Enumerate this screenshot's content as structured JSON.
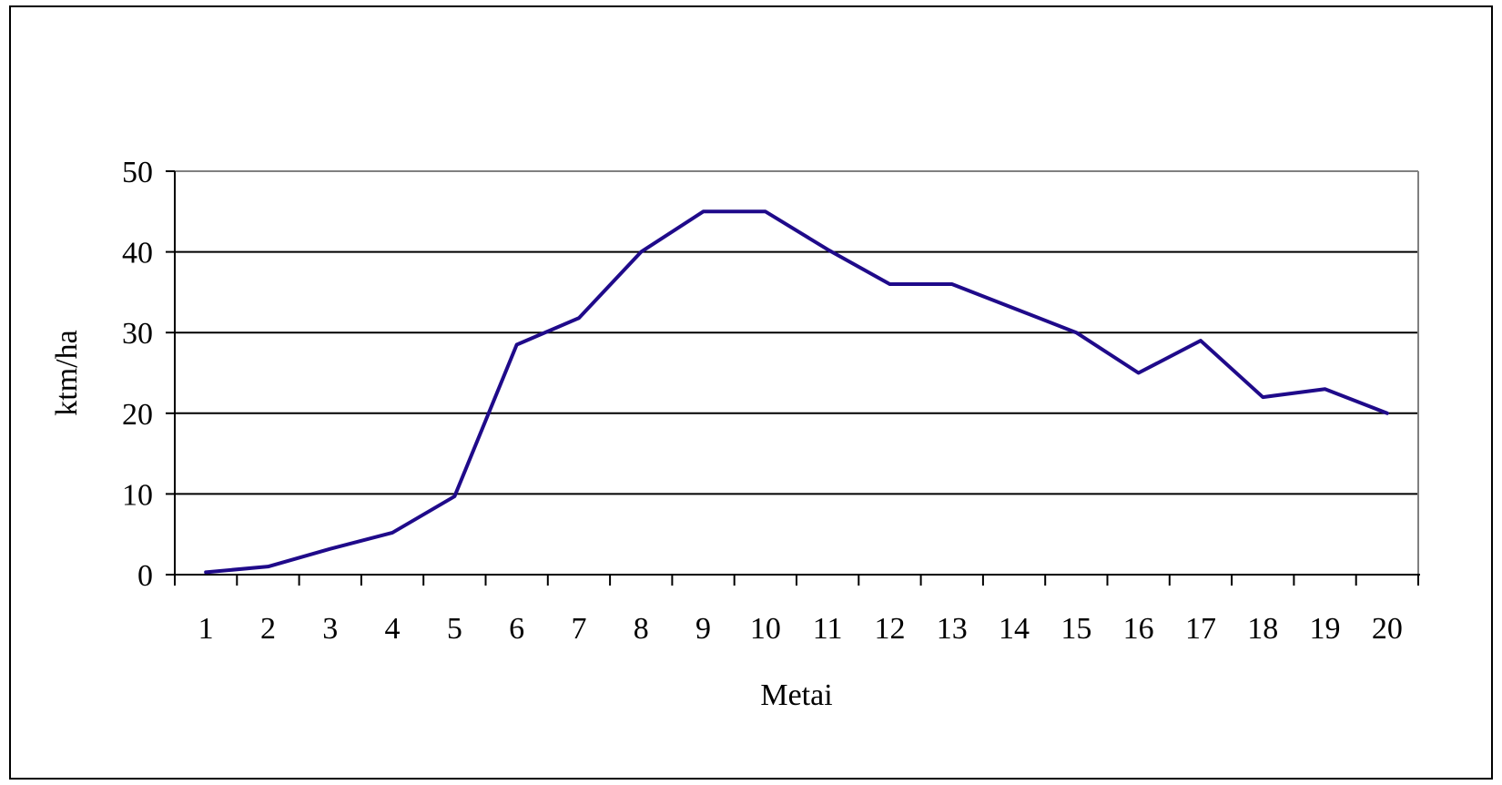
{
  "chart_data": {
    "type": "line",
    "title": "",
    "xlabel": "Metai",
    "ylabel": "ktm/ha",
    "categories": [
      "1",
      "2",
      "3",
      "4",
      "5",
      "6",
      "7",
      "8",
      "9",
      "10",
      "11",
      "12",
      "13",
      "14",
      "15",
      "16",
      "17",
      "18",
      "19",
      "20"
    ],
    "series": [
      {
        "values": [
          0.3,
          1.0,
          3.2,
          5.2,
          9.7,
          28.5,
          31.8,
          40.0,
          45.0,
          45.0,
          40.3,
          36.0,
          36.0,
          33.0,
          30.0,
          25.0,
          29.0,
          22.0,
          23.0,
          20.0
        ],
        "color": "#1f0a8a"
      }
    ],
    "ylim": [
      0,
      50
    ],
    "yticks": [
      "0",
      "10",
      "20",
      "30",
      "40",
      "50"
    ],
    "grid": true,
    "legend": "none"
  }
}
